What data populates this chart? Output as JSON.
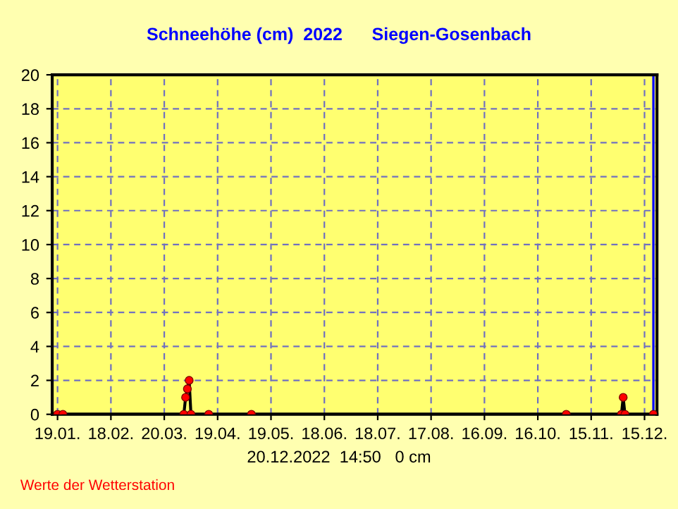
{
  "chart_data": {
    "type": "line",
    "title": "Schneehöhe (cm)  2022      Siegen-Gosenbach",
    "x": [
      "2022-01-19",
      "2022-01-22",
      "2022-03-31",
      "2022-04-01",
      "2022-04-02",
      "2022-04-03",
      "2022-04-04",
      "2022-04-14",
      "2022-05-08",
      "2022-11-01",
      "2022-12-02",
      "2022-12-03",
      "2022-12-04",
      "2022-12-20"
    ],
    "series": [
      {
        "color": "#000000",
        "values": [
          0,
          0,
          0,
          1,
          1.5,
          2,
          0,
          0,
          0,
          0,
          0,
          1,
          0,
          0
        ]
      }
    ],
    "marker": "circle",
    "xlim": [
      "2022-01-16",
      "2022-12-22"
    ],
    "xticks": [
      {
        "value": "2022-01-19",
        "label": "19.01."
      },
      {
        "value": "2022-02-18",
        "label": "18.02."
      },
      {
        "value": "2022-03-20",
        "label": "20.03."
      },
      {
        "value": "2022-04-19",
        "label": "19.04."
      },
      {
        "value": "2022-05-19",
        "label": "19.05."
      },
      {
        "value": "2022-06-18",
        "label": "18.06."
      },
      {
        "value": "2022-07-18",
        "label": "18.07."
      },
      {
        "value": "2022-08-17",
        "label": "17.08."
      },
      {
        "value": "2022-09-16",
        "label": "16.09."
      },
      {
        "value": "2022-10-16",
        "label": "16.10."
      },
      {
        "value": "2022-11-15",
        "label": "15.11."
      },
      {
        "value": "2022-12-15",
        "label": "15.12."
      }
    ],
    "ylim": [
      0,
      20
    ],
    "yticks": [
      0,
      2,
      4,
      6,
      8,
      10,
      12,
      14,
      16,
      18,
      20
    ],
    "grid": true,
    "line_style": "solid",
    "ref_lines": [
      {
        "axis": "x",
        "value": "2022-12-20",
        "color": "#0000ff"
      }
    ],
    "annotations": [
      "20.12.2022  14:50   0 cm",
      "Werte der Wetterstation"
    ]
  }
}
